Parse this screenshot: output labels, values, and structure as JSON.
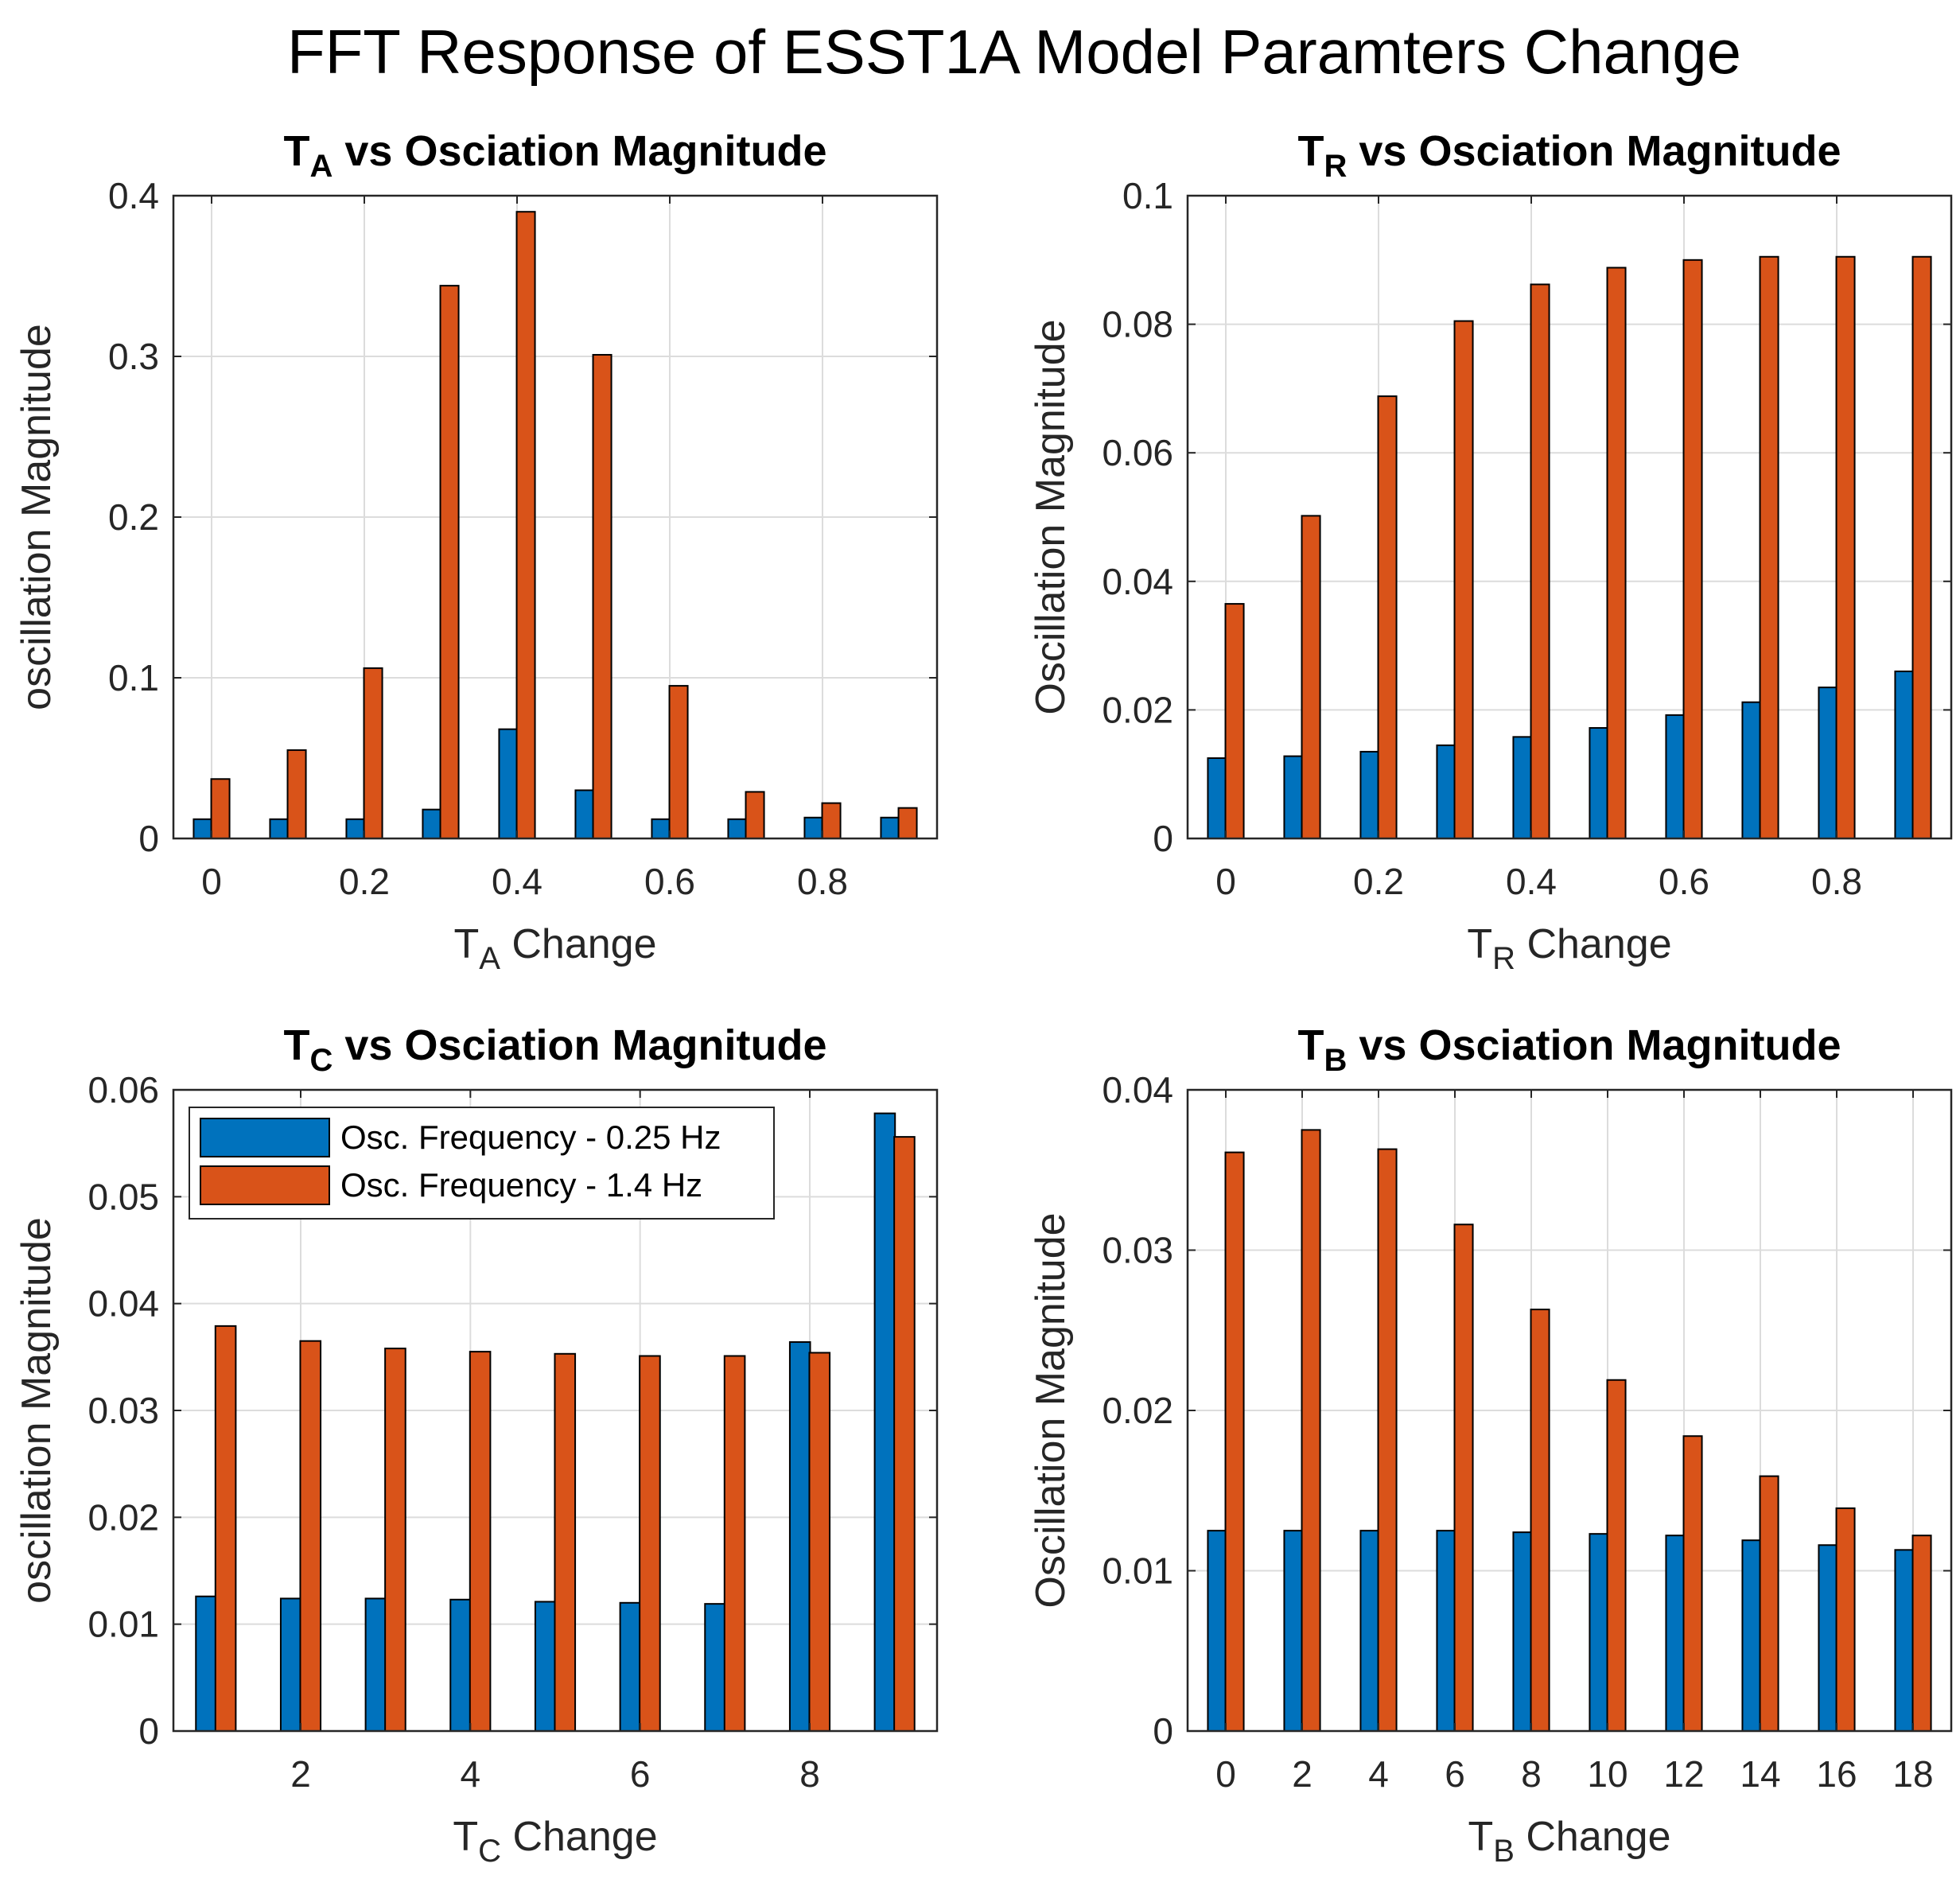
{
  "figure": {
    "title": "FFT Response of ESST1A Model Paramters Change"
  },
  "colors": {
    "series1": "#0072BD",
    "series2": "#D95319",
    "grid": "#dcdcdc",
    "axis": "#262626"
  },
  "legend": {
    "entries": [
      "Osc. Frequency - 0.25 Hz",
      "Osc. Frequency - 1.4 Hz"
    ]
  },
  "chart_data": [
    {
      "id": "ta",
      "type": "bar",
      "title": {
        "main": "T",
        "sub": "A",
        "rest": " vs Osciation Magnitude"
      },
      "xlabel": {
        "main": "T",
        "sub": "A",
        "rest": " Change"
      },
      "ylabel": "oscillation Magnitude",
      "x": [
        0,
        0.1,
        0.2,
        0.3,
        0.4,
        0.5,
        0.6,
        0.7,
        0.8,
        0.9
      ],
      "xlim": [
        -0.05,
        0.95
      ],
      "ylim": [
        0,
        0.4
      ],
      "xticks": [
        "0",
        "0.2",
        "0.4",
        "0.6",
        "0.8"
      ],
      "xtick_values": [
        0,
        0.2,
        0.4,
        0.6,
        0.8
      ],
      "yticks": [
        "0",
        "0.1",
        "0.2",
        "0.3",
        "0.4"
      ],
      "ytick_values": [
        0,
        0.1,
        0.2,
        0.3,
        0.4
      ],
      "grid": true,
      "series": [
        {
          "values": [
            0.012,
            0.012,
            0.012,
            0.018,
            0.068,
            0.03,
            0.012,
            0.012,
            0.013,
            0.013
          ]
        },
        {
          "values": [
            0.037,
            0.055,
            0.106,
            0.344,
            0.39,
            0.301,
            0.095,
            0.029,
            0.022,
            0.019
          ]
        }
      ]
    },
    {
      "id": "tr",
      "type": "bar",
      "title": {
        "main": "T",
        "sub": "R",
        "rest": " vs Osciation Magnitude"
      },
      "xlabel": {
        "main": "T",
        "sub": "R",
        "rest": " Change"
      },
      "ylabel": "Oscillation Magnitude",
      "x": [
        0,
        0.1,
        0.2,
        0.3,
        0.4,
        0.5,
        0.6,
        0.7,
        0.8,
        0.9
      ],
      "xlim": [
        -0.05,
        0.95
      ],
      "ylim": [
        0,
        0.1
      ],
      "xticks": [
        "0",
        "0.2",
        "0.4",
        "0.6",
        "0.8"
      ],
      "xtick_values": [
        0,
        0.2,
        0.4,
        0.6,
        0.8
      ],
      "yticks": [
        "0",
        "0.02",
        "0.04",
        "0.06",
        "0.08",
        "0.1"
      ],
      "ytick_values": [
        0,
        0.02,
        0.04,
        0.06,
        0.08,
        0.1
      ],
      "grid": true,
      "series": [
        {
          "values": [
            0.0125,
            0.0128,
            0.0135,
            0.0145,
            0.0158,
            0.0172,
            0.0192,
            0.0212,
            0.0235,
            0.026
          ]
        },
        {
          "values": [
            0.0365,
            0.0502,
            0.0688,
            0.0805,
            0.0862,
            0.0888,
            0.09,
            0.0905,
            0.0905,
            0.0905
          ]
        }
      ]
    },
    {
      "id": "tc",
      "type": "bar",
      "title": {
        "main": "T",
        "sub": "C",
        "rest": " vs Osciation Magnitude"
      },
      "xlabel": {
        "main": "T",
        "sub": "C",
        "rest": " Change"
      },
      "ylabel": "oscillation Magnitude",
      "x": [
        1,
        2,
        3,
        4,
        5,
        6,
        7,
        8,
        9
      ],
      "xlim": [
        0.5,
        9.5
      ],
      "ylim": [
        0,
        0.06
      ],
      "xticks": [
        "2",
        "4",
        "6",
        "8"
      ],
      "xtick_values": [
        2,
        4,
        6,
        8
      ],
      "yticks": [
        "0",
        "0.01",
        "0.02",
        "0.03",
        "0.04",
        "0.05",
        "0.06"
      ],
      "ytick_values": [
        0,
        0.01,
        0.02,
        0.03,
        0.04,
        0.05,
        0.06
      ],
      "grid": true,
      "legend_position": "top-left",
      "series": [
        {
          "values": [
            0.0126,
            0.0124,
            0.0124,
            0.0123,
            0.0121,
            0.012,
            0.0119,
            0.0364,
            0.0578
          ]
        },
        {
          "values": [
            0.0379,
            0.0365,
            0.0358,
            0.0355,
            0.0353,
            0.0351,
            0.0351,
            0.0354,
            0.0556
          ]
        }
      ]
    },
    {
      "id": "tb",
      "type": "bar",
      "title": {
        "main": "T",
        "sub": "B",
        "rest": " vs Osciation Magnitude"
      },
      "xlabel": {
        "main": "T",
        "sub": "B",
        "rest": " Change"
      },
      "ylabel": "Oscillation Magnitude",
      "x": [
        0,
        2,
        4,
        6,
        8,
        10,
        12,
        14,
        16,
        18
      ],
      "xlim": [
        -1,
        19
      ],
      "ylim": [
        0,
        0.04
      ],
      "xticks": [
        "0",
        "2",
        "4",
        "6",
        "8",
        "10",
        "12",
        "14",
        "16",
        "18"
      ],
      "xtick_values": [
        0,
        2,
        4,
        6,
        8,
        10,
        12,
        14,
        16,
        18
      ],
      "yticks": [
        "0",
        "0.01",
        "0.02",
        "0.03",
        "0.04"
      ],
      "ytick_values": [
        0,
        0.01,
        0.02,
        0.03,
        0.04
      ],
      "grid": true,
      "series": [
        {
          "values": [
            0.0125,
            0.0125,
            0.0125,
            0.0125,
            0.0124,
            0.0123,
            0.0122,
            0.0119,
            0.0116,
            0.0113
          ]
        },
        {
          "values": [
            0.0361,
            0.0375,
            0.0363,
            0.0316,
            0.0263,
            0.0219,
            0.0184,
            0.0159,
            0.0139,
            0.0122
          ]
        }
      ]
    }
  ]
}
